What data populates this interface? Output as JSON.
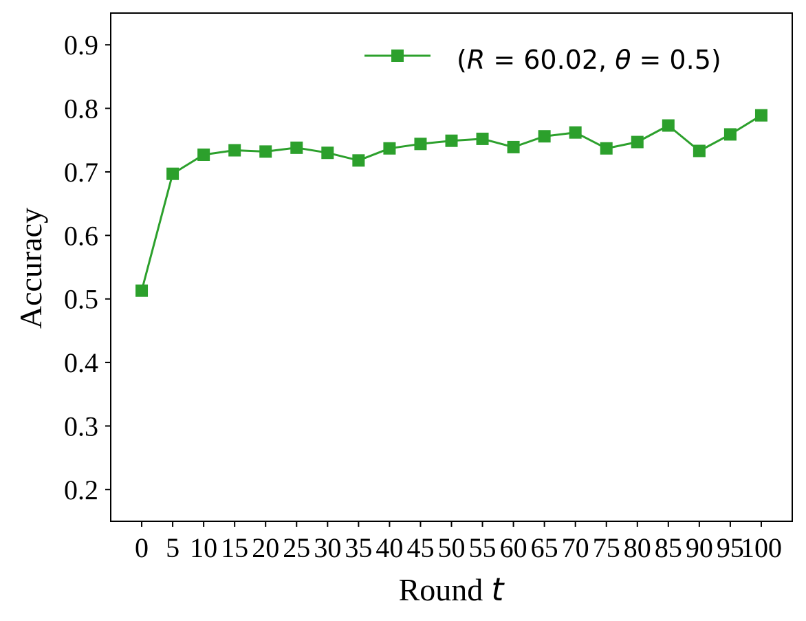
{
  "chart_data": {
    "type": "line",
    "x": [
      0,
      5,
      10,
      15,
      20,
      25,
      30,
      35,
      40,
      45,
      50,
      55,
      60,
      65,
      70,
      75,
      80,
      85,
      90,
      95,
      100
    ],
    "x_tick_labels": [
      "0",
      "5",
      "10",
      "15",
      "20",
      "25",
      "30",
      "35",
      "40",
      "45",
      "50",
      "55",
      "60",
      "65",
      "70",
      "75",
      "80",
      "85",
      "90",
      "95",
      "100"
    ],
    "series": [
      {
        "name": "(R = 60.02, θ = 0.5)",
        "color": "#2ca02c",
        "marker": "square",
        "values": [
          0.513,
          0.697,
          0.727,
          0.734,
          0.732,
          0.738,
          0.73,
          0.718,
          0.737,
          0.744,
          0.749,
          0.752,
          0.739,
          0.756,
          0.762,
          0.737,
          0.747,
          0.773,
          0.733,
          0.759,
          0.789
        ]
      }
    ],
    "xlabel": "Round",
    "xlabel_math": "t",
    "ylabel": "Accuracy",
    "ylim": [
      0.15,
      0.95
    ],
    "y_ticks": [
      0.2,
      0.3,
      0.4,
      0.5,
      0.6,
      0.7,
      0.8,
      0.9
    ],
    "y_tick_labels": [
      "0.2",
      "0.3",
      "0.4",
      "0.5",
      "0.6",
      "0.7",
      "0.8",
      "0.9"
    ],
    "xlim": [
      -5,
      105
    ],
    "legend": {
      "placement": "top-right",
      "label_parts": [
        "(",
        "R",
        " = 60.02, ",
        "θ",
        " = 0.5)"
      ]
    },
    "grid": false
  }
}
